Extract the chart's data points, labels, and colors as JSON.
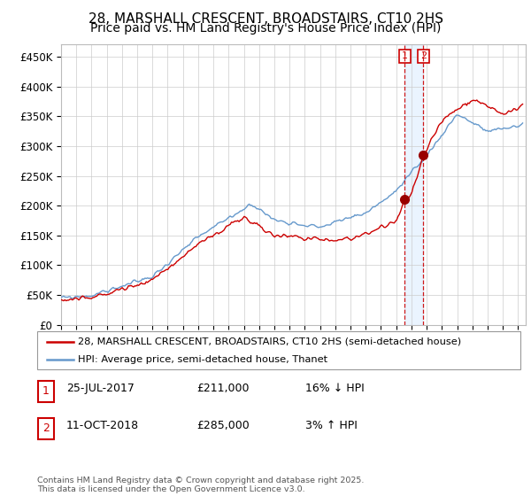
{
  "title": "28, MARSHALL CRESCENT, BROADSTAIRS, CT10 2HS",
  "subtitle": "Price paid vs. HM Land Registry's House Price Index (HPI)",
  "ylim": [
    0,
    470000
  ],
  "yticks": [
    0,
    50000,
    100000,
    150000,
    200000,
    250000,
    300000,
    350000,
    400000,
    450000
  ],
  "ytick_labels": [
    "£0",
    "£50K",
    "£100K",
    "£150K",
    "£200K",
    "£250K",
    "£300K",
    "£350K",
    "£400K",
    "£450K"
  ],
  "xlim_start": 1995.0,
  "xlim_end": 2025.5,
  "sale1_date": 2017.56,
  "sale1_price": 211000,
  "sale2_date": 2018.78,
  "sale2_price": 285000,
  "line1_color": "#cc0000",
  "line2_color": "#6699cc",
  "shade_color": "#ddeeff",
  "marker_color": "#990000",
  "dashed_color": "#cc0000",
  "legend_line1": "28, MARSHALL CRESCENT, BROADSTAIRS, CT10 2HS (semi-detached house)",
  "legend_line2": "HPI: Average price, semi-detached house, Thanet",
  "table_rows": [
    {
      "num": "1",
      "date": "25-JUL-2017",
      "price": "£211,000",
      "hpi": "16% ↓ HPI"
    },
    {
      "num": "2",
      "date": "11-OCT-2018",
      "price": "£285,000",
      "hpi": "3% ↑ HPI"
    }
  ],
  "footnote": "Contains HM Land Registry data © Crown copyright and database right 2025.\nThis data is licensed under the Open Government Licence v3.0.",
  "grid_color": "#cccccc",
  "title_fontsize": 11,
  "subtitle_fontsize": 10,
  "tick_fontsize": 8.5
}
